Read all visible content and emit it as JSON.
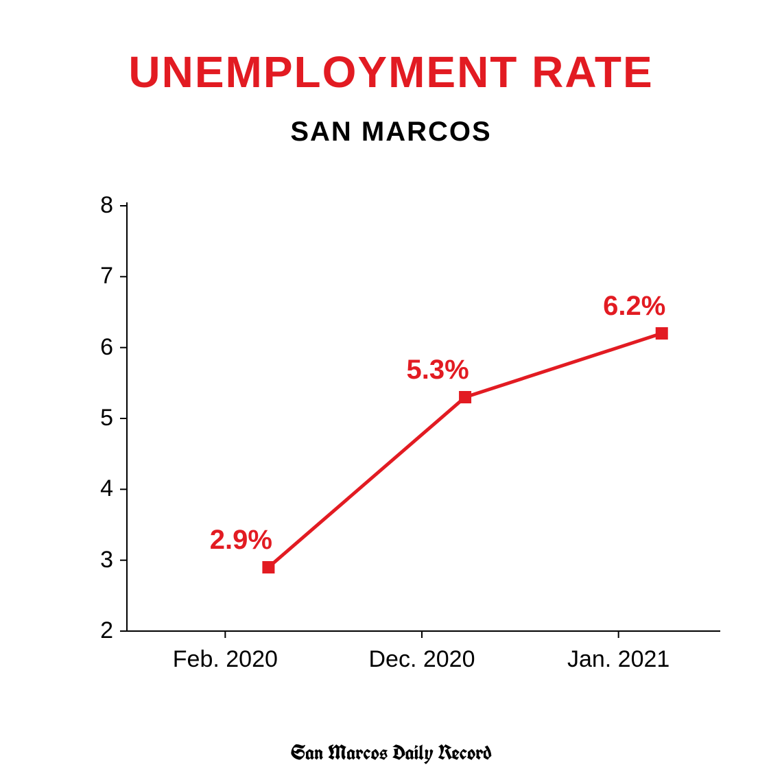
{
  "title": "UNEMPLOYMENT RATE",
  "subtitle": "SAN MARCOS",
  "footer": "San Marcos Daily Record",
  "chart": {
    "type": "line",
    "background_color": "#ffffff",
    "line_color": "#e21b22",
    "line_width": 5,
    "marker_style": "square",
    "marker_size": 18,
    "title_color": "#e21b22",
    "title_fontsize": 64,
    "subtitle_color": "#000000",
    "subtitle_fontsize": 40,
    "axis_text_color": "#000000",
    "axis_fontsize": 34,
    "data_label_color": "#e21b22",
    "data_label_fontsize": 40,
    "ylim": [
      2,
      8
    ],
    "ytick_step": 1,
    "yticks": [
      2,
      3,
      4,
      5,
      6,
      7,
      8
    ],
    "categories": [
      "Feb. 2020",
      "Dec. 2020",
      "Jan. 2021"
    ],
    "values": [
      2.9,
      5.3,
      6.2
    ],
    "data_labels": [
      "2.9%",
      "5.3%",
      "6.2%"
    ],
    "axis_color": "#000000",
    "axis_width": 2,
    "tick_length": 10
  }
}
